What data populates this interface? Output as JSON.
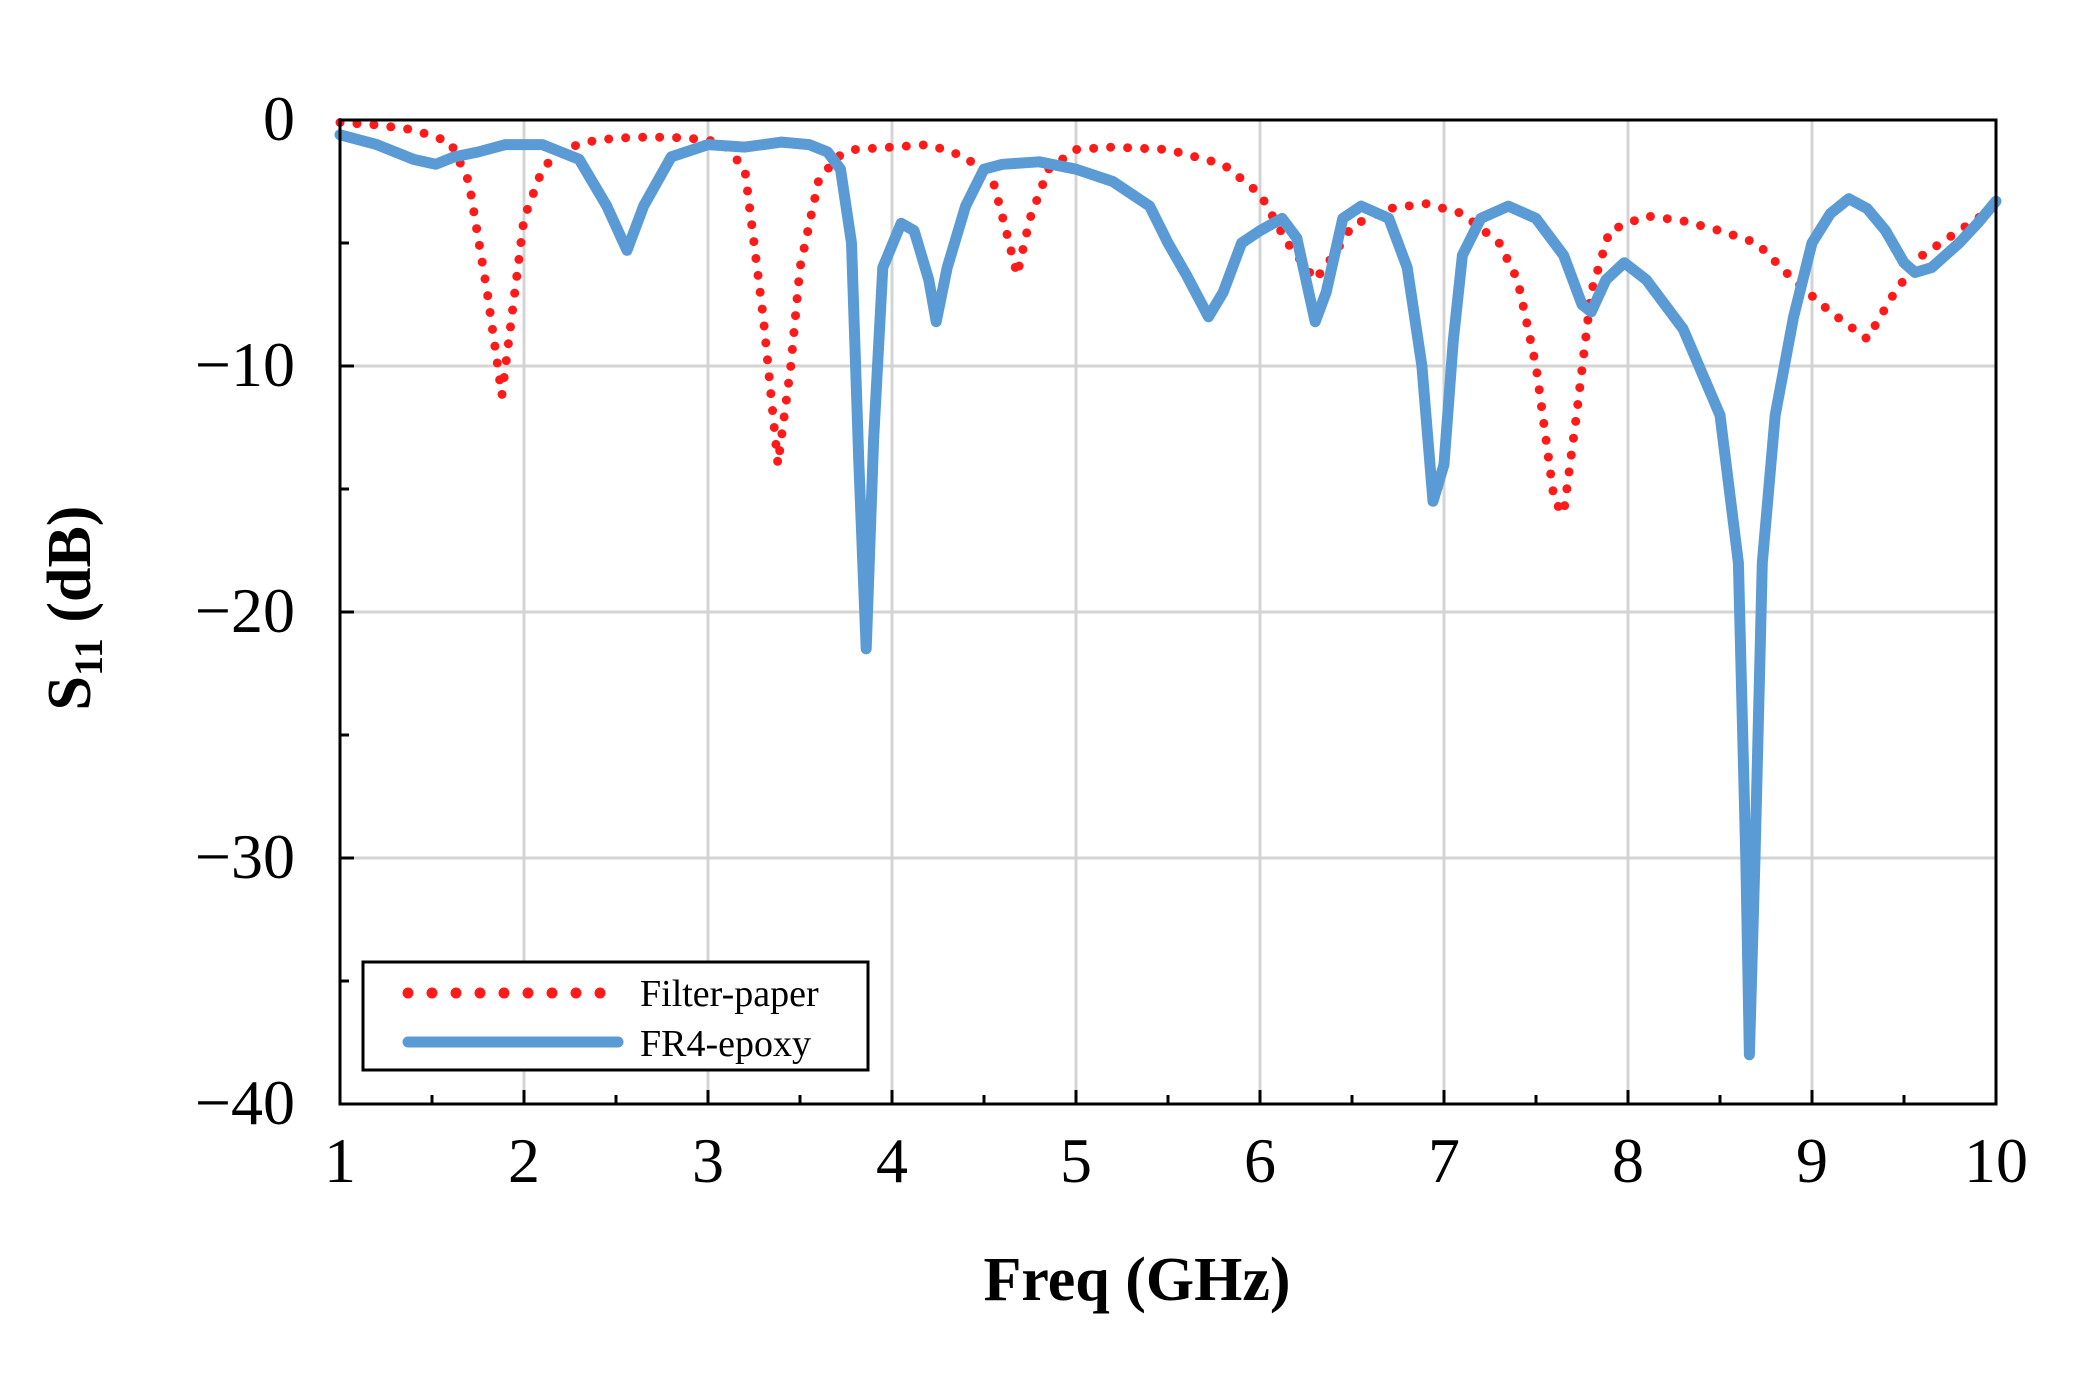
{
  "chart_data": {
    "type": "line",
    "title": "",
    "xlabel": "Freq (GHz)",
    "ylabel_main": "S",
    "ylabel_sub": "11",
    "ylabel_unit": " (dB)",
    "xlim": [
      1,
      10
    ],
    "ylim": [
      -40,
      0
    ],
    "grid": true,
    "legend_position": "bottom-left",
    "x_ticks": [
      1,
      2,
      3,
      4,
      5,
      6,
      7,
      8,
      9,
      10
    ],
    "x_tick_labels": [
      "1",
      "2",
      "3",
      "4",
      "5",
      "6",
      "7",
      "8",
      "9",
      "10"
    ],
    "y_ticks": [
      0,
      -10,
      -20,
      -30,
      -40
    ],
    "y_tick_labels": [
      "0",
      "−10",
      "−20",
      "−30",
      "−40"
    ],
    "series": [
      {
        "name": "Filter-paper",
        "style": "dotted",
        "color": "#ff1a1a",
        "points": [
          [
            1.0,
            -0.1
          ],
          [
            1.2,
            -0.2
          ],
          [
            1.4,
            -0.4
          ],
          [
            1.6,
            -0.9
          ],
          [
            1.7,
            -2.5
          ],
          [
            1.8,
            -7.0
          ],
          [
            1.88,
            -11.2
          ],
          [
            1.95,
            -7.0
          ],
          [
            2.0,
            -4.0
          ],
          [
            2.1,
            -2.0
          ],
          [
            2.2,
            -1.2
          ],
          [
            2.4,
            -0.8
          ],
          [
            2.6,
            -0.7
          ],
          [
            2.8,
            -0.7
          ],
          [
            3.0,
            -0.8
          ],
          [
            3.1,
            -1.1
          ],
          [
            3.2,
            -2.0
          ],
          [
            3.3,
            -8.0
          ],
          [
            3.38,
            -14.0
          ],
          [
            3.45,
            -10.0
          ],
          [
            3.5,
            -6.0
          ],
          [
            3.6,
            -2.5
          ],
          [
            3.7,
            -1.5
          ],
          [
            3.8,
            -1.2
          ],
          [
            4.0,
            -1.1
          ],
          [
            4.2,
            -1.0
          ],
          [
            4.4,
            -1.5
          ],
          [
            4.55,
            -2.5
          ],
          [
            4.62,
            -4.5
          ],
          [
            4.68,
            -6.3
          ],
          [
            4.75,
            -4.0
          ],
          [
            4.85,
            -2.0
          ],
          [
            5.0,
            -1.2
          ],
          [
            5.2,
            -1.1
          ],
          [
            5.5,
            -1.2
          ],
          [
            5.8,
            -1.8
          ],
          [
            6.0,
            -3.0
          ],
          [
            6.15,
            -5.0
          ],
          [
            6.3,
            -6.5
          ],
          [
            6.4,
            -5.5
          ],
          [
            6.5,
            -4.3
          ],
          [
            6.7,
            -3.6
          ],
          [
            6.9,
            -3.4
          ],
          [
            7.1,
            -3.8
          ],
          [
            7.3,
            -5.0
          ],
          [
            7.4,
            -6.5
          ],
          [
            7.5,
            -10.0
          ],
          [
            7.6,
            -15.5
          ],
          [
            7.65,
            -16.0
          ],
          [
            7.72,
            -12.0
          ],
          [
            7.8,
            -7.0
          ],
          [
            7.9,
            -4.5
          ],
          [
            8.1,
            -3.9
          ],
          [
            8.3,
            -4.1
          ],
          [
            8.5,
            -4.5
          ],
          [
            8.7,
            -5.0
          ],
          [
            8.9,
            -6.5
          ],
          [
            9.1,
            -7.8
          ],
          [
            9.3,
            -8.9
          ],
          [
            9.45,
            -7.0
          ],
          [
            9.6,
            -5.5
          ],
          [
            9.8,
            -4.5
          ],
          [
            10.0,
            -3.5
          ]
        ]
      },
      {
        "name": "FR4-epoxy",
        "style": "solid",
        "color": "#5b9bd5",
        "points": [
          [
            1.0,
            -0.6
          ],
          [
            1.2,
            -1.0
          ],
          [
            1.4,
            -1.6
          ],
          [
            1.52,
            -1.8
          ],
          [
            1.62,
            -1.5
          ],
          [
            1.75,
            -1.3
          ],
          [
            1.9,
            -1.0
          ],
          [
            2.1,
            -1.0
          ],
          [
            2.3,
            -1.6
          ],
          [
            2.45,
            -3.5
          ],
          [
            2.56,
            -5.3
          ],
          [
            2.65,
            -3.5
          ],
          [
            2.8,
            -1.5
          ],
          [
            3.0,
            -1.0
          ],
          [
            3.2,
            -1.1
          ],
          [
            3.4,
            -0.9
          ],
          [
            3.55,
            -1.0
          ],
          [
            3.65,
            -1.3
          ],
          [
            3.72,
            -2.0
          ],
          [
            3.78,
            -5.0
          ],
          [
            3.82,
            -14.0
          ],
          [
            3.86,
            -21.5
          ],
          [
            3.9,
            -13.0
          ],
          [
            3.95,
            -6.0
          ],
          [
            4.05,
            -4.2
          ],
          [
            4.12,
            -4.5
          ],
          [
            4.2,
            -6.5
          ],
          [
            4.24,
            -8.2
          ],
          [
            4.3,
            -6.0
          ],
          [
            4.4,
            -3.5
          ],
          [
            4.5,
            -2.0
          ],
          [
            4.6,
            -1.8
          ],
          [
            4.8,
            -1.7
          ],
          [
            5.0,
            -2.0
          ],
          [
            5.2,
            -2.5
          ],
          [
            5.4,
            -3.5
          ],
          [
            5.5,
            -5.0
          ],
          [
            5.6,
            -6.3
          ],
          [
            5.72,
            -8.0
          ],
          [
            5.8,
            -7.0
          ],
          [
            5.9,
            -5.0
          ],
          [
            6.0,
            -4.5
          ],
          [
            6.12,
            -4.0
          ],
          [
            6.2,
            -4.8
          ],
          [
            6.25,
            -6.5
          ],
          [
            6.3,
            -8.2
          ],
          [
            6.36,
            -7.0
          ],
          [
            6.45,
            -4.0
          ],
          [
            6.55,
            -3.5
          ],
          [
            6.7,
            -4.0
          ],
          [
            6.8,
            -6.0
          ],
          [
            6.88,
            -10.0
          ],
          [
            6.94,
            -15.5
          ],
          [
            7.0,
            -14.0
          ],
          [
            7.05,
            -9.0
          ],
          [
            7.1,
            -5.5
          ],
          [
            7.2,
            -4.0
          ],
          [
            7.35,
            -3.5
          ],
          [
            7.5,
            -4.0
          ],
          [
            7.65,
            -5.5
          ],
          [
            7.75,
            -7.5
          ],
          [
            7.8,
            -7.8
          ],
          [
            7.88,
            -6.5
          ],
          [
            7.98,
            -5.8
          ],
          [
            8.1,
            -6.5
          ],
          [
            8.3,
            -8.5
          ],
          [
            8.5,
            -12.0
          ],
          [
            8.6,
            -18.0
          ],
          [
            8.64,
            -30.0
          ],
          [
            8.66,
            -38.0
          ],
          [
            8.69,
            -30.0
          ],
          [
            8.73,
            -18.0
          ],
          [
            8.8,
            -12.0
          ],
          [
            8.9,
            -8.0
          ],
          [
            9.0,
            -5.0
          ],
          [
            9.1,
            -3.8
          ],
          [
            9.2,
            -3.2
          ],
          [
            9.3,
            -3.6
          ],
          [
            9.4,
            -4.5
          ],
          [
            9.5,
            -5.8
          ],
          [
            9.56,
            -6.2
          ],
          [
            9.65,
            -6.0
          ],
          [
            9.8,
            -5.0
          ],
          [
            9.9,
            -4.2
          ],
          [
            10.0,
            -3.3
          ]
        ]
      }
    ]
  }
}
